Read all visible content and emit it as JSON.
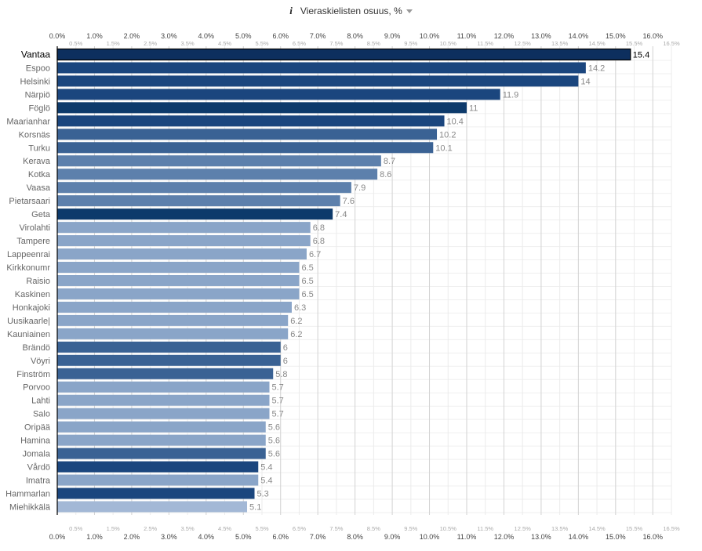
{
  "header": {
    "info_symbol": "i",
    "title": "Vieraskielisten osuus, %"
  },
  "chart_data": {
    "type": "bar",
    "orientation": "horizontal",
    "title": "Vieraskielisten osuus, %",
    "xlabel": "",
    "ylabel": "",
    "xlim": [
      0,
      16.5
    ],
    "major_ticks": [
      "0.0%",
      "1.0%",
      "2.0%",
      "3.0%",
      "4.0%",
      "5.0%",
      "6.0%",
      "7.0%",
      "8.0%",
      "9.0%",
      "10.0%",
      "11.0%",
      "12.0%",
      "13.0%",
      "14.0%",
      "15.0%",
      "16.0%"
    ],
    "minor_ticks": [
      "0.5%",
      "1.5%",
      "2.5%",
      "3.5%",
      "4.5%",
      "5.5%",
      "6.5%",
      "7.5%",
      "8.5%",
      "9.5%",
      "10.5%",
      "11.5%",
      "12.5%",
      "13.5%",
      "14.5%",
      "15.5%",
      "16.5%"
    ],
    "grid": true,
    "highlighted": "Vantaa",
    "categories": [
      "Vantaa",
      "Espoo",
      "Helsinki",
      "Närpiö",
      "Föglö",
      "Maarianhamina",
      "Korsnäs",
      "Turku",
      "Kerava",
      "Kotka",
      "Vaasa",
      "Pietarsaari",
      "Geta",
      "Virolahti",
      "Tampere",
      "Lappeenranta",
      "Kirkkonummi",
      "Raisio",
      "Kaskinen",
      "Honkajoki",
      "Uusikaarlepyy",
      "Kauniainen",
      "Brändö",
      "Vöyri",
      "Finström",
      "Porvoo",
      "Lahti",
      "Salo",
      "Oripää",
      "Hamina",
      "Jomala",
      "Vårdö",
      "Imatra",
      "Hammarland",
      "Miehikkälä"
    ],
    "category_labels": [
      "Vantaa",
      "Espoo",
      "Helsinki",
      "Närpiö",
      "Föglö",
      "Maarianhar",
      "Korsnäs",
      "Turku",
      "Kerava",
      "Kotka",
      "Vaasa",
      "Pietarsaari",
      "Geta",
      "Virolahti",
      "Tampere",
      "Lappeenrai",
      "Kirkkonumr",
      "Raisio",
      "Kaskinen",
      "Honkajoki",
      "Uusikaarle|",
      "Kauniainen",
      "Brändö",
      "Vöyri",
      "Finström",
      "Porvoo",
      "Lahti",
      "Salo",
      "Oripää",
      "Hamina",
      "Jomala",
      "Vårdö",
      "Imatra",
      "Hammarlan",
      "Miehikkälä"
    ],
    "value_labels": [
      "15.4",
      "14.2",
      "14",
      "11.9",
      "11",
      "10.4",
      "10.2",
      "10.1",
      "8.7",
      "8.6",
      "7.9",
      "7.6",
      "7.4",
      "6.8",
      "6.8",
      "6.7",
      "6.5",
      "6.5",
      "6.5",
      "6.3",
      "6.2",
      "6.2",
      "6",
      "6",
      "5.8",
      "5.7",
      "5.7",
      "5.7",
      "5.6",
      "5.6",
      "5.6",
      "5.4",
      "5.4",
      "5.3",
      "5.1"
    ],
    "values": [
      15.4,
      14.2,
      14,
      11.9,
      11,
      10.4,
      10.2,
      10.1,
      8.7,
      8.6,
      7.9,
      7.6,
      7.4,
      6.8,
      6.8,
      6.7,
      6.5,
      6.5,
      6.5,
      6.3,
      6.2,
      6.2,
      6,
      6,
      5.8,
      5.7,
      5.7,
      5.7,
      5.6,
      5.6,
      5.6,
      5.4,
      5.4,
      5.3,
      5.1
    ],
    "colors": [
      "#0d2f5e",
      "#1b467e",
      "#1b467e",
      "#1b467e",
      "#0d3a6b",
      "#1b467e",
      "#3a6294",
      "#3a6294",
      "#5d80ac",
      "#5d80ac",
      "#5d80ac",
      "#5d80ac",
      "#0d3a6b",
      "#8aa5c8",
      "#8aa5c8",
      "#8aa5c8",
      "#8aa5c8",
      "#8aa5c8",
      "#8aa5c8",
      "#8aa5c8",
      "#8aa5c8",
      "#8aa5c8",
      "#3a6294",
      "#3a6294",
      "#3a6294",
      "#8aa5c8",
      "#8aa5c8",
      "#8aa5c8",
      "#8aa5c8",
      "#8aa5c8",
      "#3a6294",
      "#1b467e",
      "#8aa5c8",
      "#1b467e",
      "#a3b8d6"
    ]
  }
}
